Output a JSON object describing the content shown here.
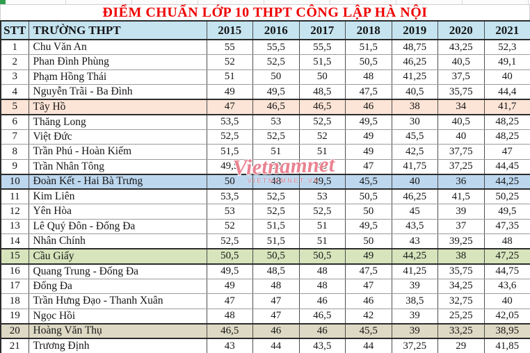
{
  "title": "ĐIỂM CHUẨN LỚP 10 THPT CÔNG LẬP HÀ NỘI",
  "watermark": {
    "main": "Vietnamnet",
    "sub": "VIETNAMNET.VN"
  },
  "colors": {
    "title_text": "#ee0000",
    "header_bg": "#c5e4f0",
    "highlight_peach": "#fce4d6",
    "highlight_blue": "#bdd7ee",
    "highlight_green": "#d7e4bc",
    "highlight_tan": "#ddd9c4"
  },
  "chart_data": {
    "type": "table",
    "title": "ĐIỂM CHUẨN LỚP 10 THPT CÔNG LẬP HÀ NỘI",
    "columns": [
      "STT",
      "TRƯỜNG THPT",
      "2015",
      "2016",
      "2017",
      "2018",
      "2019",
      "2020",
      "2021"
    ],
    "rows": [
      [
        "1",
        "Chu Văn An",
        "55",
        "55,5",
        "55,5",
        "51,5",
        "48,75",
        "43,25",
        "52,3"
      ],
      [
        "2",
        "Phan Đình Phùng",
        "52",
        "52,5",
        "51,5",
        "50,5",
        "46,25",
        "40,5",
        "49,1"
      ],
      [
        "3",
        "Phạm Hồng Thái",
        "51",
        "50",
        "50",
        "48",
        "41,25",
        "37,5",
        "40"
      ],
      [
        "4",
        "Nguyễn Trãi - Ba Đình",
        "49",
        "49,5",
        "48,5",
        "47,5",
        "40,5",
        "35,75",
        "44,4"
      ],
      [
        "5",
        "Tây Hồ",
        "47",
        "46,5",
        "46,5",
        "46",
        "38",
        "34",
        "41,7"
      ],
      [
        "6",
        "Thăng Long",
        "53,5",
        "53",
        "52,5",
        "49,5",
        "30",
        "40,5",
        "48,25"
      ],
      [
        "7",
        "Việt Đức",
        "52,5",
        "52,5",
        "52",
        "49",
        "45,5",
        "40",
        "48,25"
      ],
      [
        "8",
        "Trần Phú - Hoàn Kiếm",
        "51,5",
        "51",
        "51",
        "49",
        "42,5",
        "37,75",
        "47"
      ],
      [
        "9",
        "Trần Nhân Tông",
        "49,5",
        "50",
        "49",
        "47",
        "41,75",
        "37,25",
        "44,45"
      ],
      [
        "10",
        "Đoàn Kết - Hai Bà Trưng",
        "50",
        "48",
        "49,5",
        "45,5",
        "40",
        "36",
        "44,25"
      ],
      [
        "11",
        "Kim Liên",
        "53,5",
        "52,5",
        "53",
        "50,5",
        "46,25",
        "41,5",
        "50,25"
      ],
      [
        "12",
        "Yên Hòa",
        "53",
        "52,5",
        "52,5",
        "50",
        "45",
        "39",
        "49,5"
      ],
      [
        "13",
        "Lê Quý Đôn - Đống Đa",
        "52",
        "51,5",
        "51",
        "49,5",
        "43,5",
        "37",
        "47,35"
      ],
      [
        "14",
        "Nhân Chính",
        "52,5",
        "51,5",
        "51",
        "50",
        "43",
        "39,25",
        "48"
      ],
      [
        "15",
        "Cầu Giấy",
        "50,5",
        "50,5",
        "50,5",
        "49",
        "44,25",
        "38",
        "47,25"
      ],
      [
        "16",
        "Quang Trung - Đống Đa",
        "49,5",
        "48,5",
        "48",
        "47,5",
        "41,25",
        "35,75",
        "44,75"
      ],
      [
        "17",
        "Đống Đa",
        "49",
        "48",
        "48",
        "47",
        "39",
        "34,25",
        "43,6"
      ],
      [
        "18",
        "Trần Hưng Đạo - Thanh Xuân",
        "47",
        "47",
        "46",
        "46",
        "38,5",
        "32,75",
        "40"
      ],
      [
        "19",
        "Ngọc Hồi",
        "48",
        "47",
        "46,5",
        "42",
        "39",
        "25,25",
        "42,05"
      ],
      [
        "20",
        "Hoàng Văn Thụ",
        "46,5",
        "46",
        "46",
        "45,5",
        "39",
        "33,25",
        "38,95"
      ],
      [
        "21",
        "Trương Định",
        "43",
        "44",
        "43,5",
        "44",
        "37,25",
        "29",
        "41,85"
      ]
    ],
    "highlighted_rows": {
      "5": "#fce4d6",
      "10": "#bdd7ee",
      "15": "#d7e4bc",
      "20": "#ddd9c4"
    },
    "legend_position": "none",
    "grid": true
  }
}
